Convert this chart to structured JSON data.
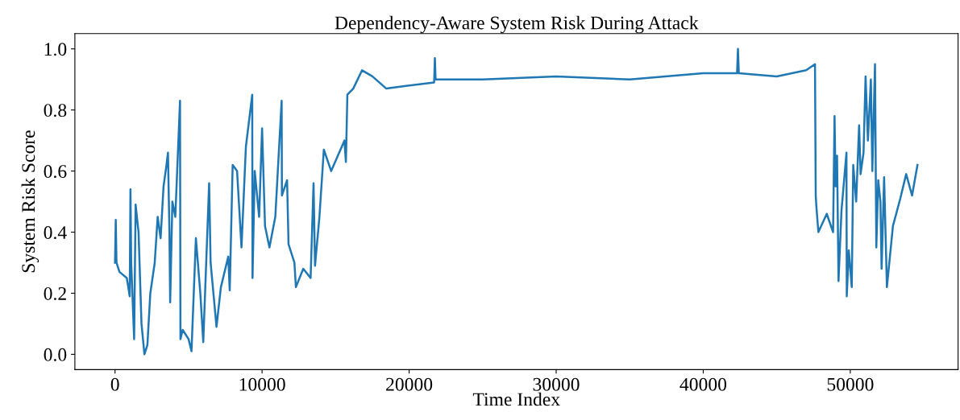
{
  "chart_data": {
    "type": "line",
    "title": "Dependency-Aware System Risk During Attack",
    "xlabel": "Time Index",
    "ylabel": "System Risk Score",
    "xlim": [
      -2730,
      57330
    ],
    "ylim": [
      -0.05,
      1.05
    ],
    "xticks": [
      0,
      10000,
      20000,
      30000,
      40000,
      50000
    ],
    "yticks": [
      {
        "value": 0.0,
        "label": "0.0"
      },
      {
        "value": 0.2,
        "label": "0.2"
      },
      {
        "value": 0.4,
        "label": "0.4"
      },
      {
        "value": 0.6,
        "label": "0.6"
      },
      {
        "value": 0.8,
        "label": "0.8"
      },
      {
        "value": 1.0,
        "label": "1.0"
      }
    ],
    "grid": false,
    "legend": false,
    "marker": "none",
    "line_style": "solid",
    "series": [
      {
        "color": "#1f77b4",
        "x": [
          0,
          50,
          100,
          300,
          800,
          1000,
          1050,
          1100,
          1300,
          1400,
          1600,
          1800,
          2000,
          2200,
          2400,
          2700,
          2900,
          3100,
          3300,
          3500,
          3600,
          3700,
          3750,
          3900,
          4100,
          4420,
          4450,
          4600,
          5000,
          5200,
          5500,
          5800,
          6000,
          6400,
          6500,
          6900,
          7200,
          7700,
          7800,
          8000,
          8300,
          8600,
          8900,
          9330,
          9350,
          9500,
          9800,
          10000,
          10200,
          10500,
          10900,
          11330,
          11350,
          11700,
          11800,
          12200,
          12300,
          12800,
          13300,
          13500,
          13600,
          13900,
          14200,
          14700,
          15600,
          15700,
          15800,
          16200,
          16800,
          17500,
          18450,
          20000,
          21700,
          21750,
          21800,
          25000,
          30000,
          35000,
          40000,
          42300,
          42360,
          42420,
          45000,
          47000,
          47600,
          47650,
          47700,
          47830,
          48400,
          48830,
          48930,
          49000,
          49100,
          49200,
          49400,
          49740,
          49760,
          49900,
          50100,
          50200,
          50400,
          50600,
          50700,
          50900,
          51040,
          51200,
          51400,
          51500,
          51680,
          51770,
          51900,
          52050,
          52130,
          52300,
          52490,
          52900,
          53400,
          53800,
          54200,
          54570
        ],
        "values": [
          0.3,
          0.44,
          0.3,
          0.27,
          0.25,
          0.19,
          0.54,
          0.3,
          0.05,
          0.49,
          0.4,
          0.1,
          0.0,
          0.03,
          0.2,
          0.3,
          0.45,
          0.38,
          0.55,
          0.62,
          0.66,
          0.4,
          0.17,
          0.5,
          0.45,
          0.83,
          0.05,
          0.08,
          0.05,
          0.01,
          0.38,
          0.2,
          0.04,
          0.56,
          0.3,
          0.09,
          0.22,
          0.32,
          0.21,
          0.62,
          0.6,
          0.35,
          0.68,
          0.85,
          0.25,
          0.6,
          0.45,
          0.74,
          0.42,
          0.35,
          0.45,
          0.83,
          0.52,
          0.57,
          0.36,
          0.3,
          0.22,
          0.28,
          0.25,
          0.56,
          0.29,
          0.45,
          0.67,
          0.6,
          0.7,
          0.63,
          0.85,
          0.87,
          0.93,
          0.91,
          0.87,
          0.88,
          0.89,
          0.97,
          0.9,
          0.9,
          0.91,
          0.9,
          0.92,
          0.92,
          1.0,
          0.92,
          0.91,
          0.93,
          0.95,
          0.52,
          0.48,
          0.4,
          0.46,
          0.4,
          0.78,
          0.55,
          0.65,
          0.24,
          0.47,
          0.66,
          0.19,
          0.34,
          0.22,
          0.62,
          0.5,
          0.75,
          0.59,
          0.66,
          0.91,
          0.7,
          0.9,
          0.6,
          0.95,
          0.35,
          0.57,
          0.5,
          0.28,
          0.58,
          0.22,
          0.42,
          0.51,
          0.59,
          0.52,
          0.62
        ]
      }
    ]
  }
}
